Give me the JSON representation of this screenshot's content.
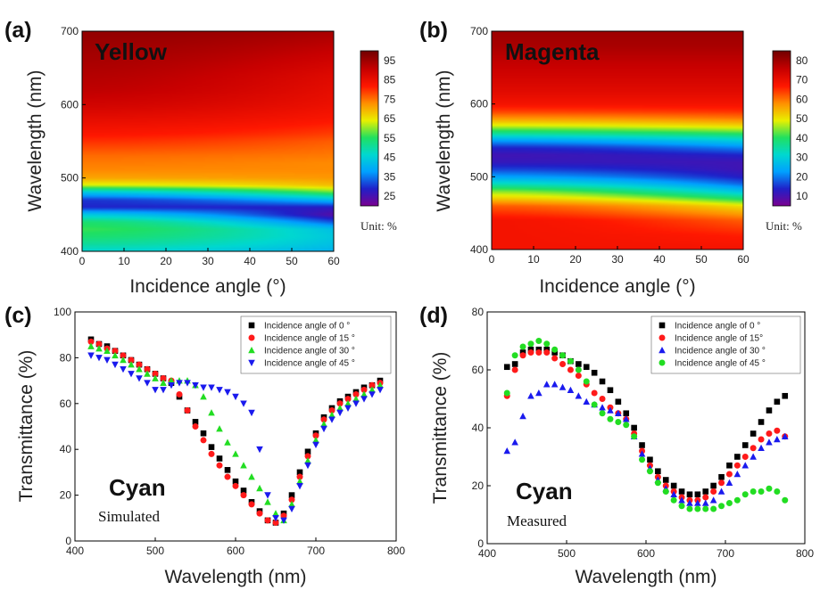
{
  "colors": {
    "jet": [
      "#7a0090",
      "#2020c8",
      "#00a0ff",
      "#00d8d0",
      "#20e060",
      "#e8f000",
      "#ff9000",
      "#ff1800",
      "#c80000",
      "#700000"
    ],
    "series": [
      "#000000",
      "#ff1a1a",
      "#22dd22",
      "#1a1aee"
    ]
  },
  "panels": {
    "a": {
      "label": "(a)",
      "title": "Yellow",
      "xlabel": "Incidence angle (°)",
      "ylabel": "Wavelength (nm)",
      "xticks": [
        "0",
        "10",
        "20",
        "30",
        "40",
        "50",
        "60"
      ],
      "yticks": [
        "400",
        "500",
        "600",
        "700"
      ],
      "colorbar_ticks": [
        "95",
        "85",
        "75",
        "65",
        "55",
        "45",
        "35",
        "25"
      ],
      "unit": "Unit: %"
    },
    "b": {
      "label": "(b)",
      "title": "Magenta",
      "xlabel": "Incidence angle (°)",
      "ylabel": "Wavelength (nm)",
      "xticks": [
        "0",
        "10",
        "20",
        "30",
        "40",
        "50",
        "60"
      ],
      "yticks": [
        "400",
        "500",
        "600",
        "700"
      ],
      "colorbar_ticks": [
        "80",
        "70",
        "60",
        "50",
        "40",
        "30",
        "20",
        "10"
      ],
      "unit": "Unit: %"
    },
    "c": {
      "label": "(c)",
      "big": "Cyan",
      "sub": "Simulated",
      "xlabel": "Wavelength (nm)",
      "ylabel": "Transmittance (%)",
      "xticks": [
        "400",
        "500",
        "600",
        "700",
        "800"
      ],
      "yticks": [
        "0",
        "20",
        "40",
        "60",
        "80",
        "100"
      ]
    },
    "d": {
      "label": "(d)",
      "big": "Cyan",
      "sub": "Measured",
      "xlabel": "Wavelength (nm)",
      "ylabel": "Transmittance (%)",
      "xticks": [
        "400",
        "500",
        "600",
        "700",
        "800"
      ],
      "yticks": [
        "0",
        "20",
        "40",
        "60",
        "80"
      ]
    }
  },
  "chart_data": [
    {
      "type": "heatmap",
      "title": "Yellow",
      "xlabel": "Incidence angle (°)",
      "ylabel": "Wavelength (nm)",
      "xlim": [
        0,
        60
      ],
      "ylim": [
        400,
        700
      ],
      "zlim": [
        25,
        95
      ],
      "zunit": "%",
      "angles": [
        0,
        60
      ],
      "profile_wavelengths": [
        400,
        410,
        420,
        430,
        440,
        450,
        460,
        470,
        480,
        490,
        500,
        510,
        520,
        530,
        540,
        550,
        560,
        580,
        600,
        620,
        640,
        660,
        680,
        700
      ],
      "profile_angle0": [
        48,
        52,
        55,
        57,
        55,
        46,
        33,
        34,
        45,
        63,
        70,
        72,
        73,
        74,
        76,
        78,
        80,
        83,
        86,
        88,
        89,
        90,
        91,
        92
      ],
      "profile_angle60": [
        43,
        45,
        46,
        45,
        36,
        28,
        32,
        44,
        58,
        68,
        71,
        72,
        72,
        73,
        74,
        75,
        77,
        80,
        82,
        83,
        84,
        86,
        88,
        90
      ]
    },
    {
      "type": "heatmap",
      "title": "Magenta",
      "xlabel": "Incidence angle (°)",
      "ylabel": "Wavelength (nm)",
      "xlim": [
        0,
        60
      ],
      "ylim": [
        400,
        700
      ],
      "zlim": [
        10,
        80
      ],
      "zunit": "%",
      "angles": [
        0,
        60
      ],
      "profile_wavelengths": [
        400,
        420,
        440,
        460,
        470,
        480,
        490,
        500,
        510,
        520,
        530,
        540,
        550,
        560,
        570,
        580,
        590,
        600,
        620,
        640,
        660,
        680,
        700
      ],
      "profile_angle0": [
        66,
        66,
        66,
        60,
        52,
        45,
        35,
        26,
        20,
        16,
        15,
        18,
        26,
        38,
        48,
        56,
        62,
        66,
        69,
        71,
        73,
        75,
        76
      ],
      "profile_angle60": [
        66,
        64,
        60,
        50,
        40,
        30,
        22,
        17,
        15,
        15,
        18,
        24,
        32,
        42,
        51,
        58,
        63,
        66,
        69,
        71,
        73,
        75,
        76
      ]
    },
    {
      "type": "scatter",
      "xlabel": "Wavelength (nm)",
      "ylabel": "Transmittance (%)",
      "xlim": [
        400,
        800
      ],
      "ylim": [
        0,
        100
      ],
      "series": [
        {
          "name": "Incidence angle of 0 °",
          "marker": "square",
          "x": [
            420,
            430,
            440,
            450,
            460,
            470,
            480,
            490,
            500,
            510,
            520,
            530,
            540,
            550,
            560,
            570,
            580,
            590,
            600,
            610,
            620,
            630,
            640,
            650,
            660,
            670,
            680,
            690,
            700,
            710,
            720,
            730,
            740,
            750,
            760,
            770,
            780
          ],
          "y": [
            88,
            86,
            85,
            83,
            81,
            79,
            77,
            75,
            73,
            71,
            69,
            63,
            57,
            52,
            47,
            41,
            36,
            31,
            26,
            22,
            17,
            13,
            9,
            8,
            12,
            20,
            30,
            39,
            47,
            54,
            58,
            61,
            63,
            65,
            67,
            68,
            70
          ]
        },
        {
          "name": "Incidence angle of 15 °",
          "marker": "circle",
          "x": [
            420,
            430,
            440,
            450,
            460,
            470,
            480,
            490,
            500,
            510,
            520,
            530,
            540,
            550,
            560,
            570,
            580,
            590,
            600,
            610,
            620,
            630,
            640,
            650,
            660,
            670,
            680,
            690,
            700,
            710,
            720,
            730,
            740,
            750,
            760,
            770,
            780
          ],
          "y": [
            87,
            86,
            84,
            83,
            81,
            79,
            77,
            75,
            73,
            71,
            70,
            64,
            57,
            50,
            44,
            38,
            33,
            28,
            24,
            20,
            16,
            12,
            9,
            8,
            11,
            18,
            28,
            37,
            46,
            53,
            57,
            60,
            62,
            64,
            66,
            68,
            69
          ]
        },
        {
          "name": "Incidence angle of 30 °",
          "marker": "triangle-up",
          "x": [
            420,
            430,
            440,
            450,
            460,
            470,
            480,
            490,
            500,
            510,
            520,
            530,
            540,
            550,
            560,
            570,
            580,
            590,
            600,
            610,
            620,
            630,
            640,
            650,
            660,
            670,
            680,
            690,
            700,
            710,
            720,
            730,
            740,
            750,
            760,
            770,
            780
          ],
          "y": [
            85,
            84,
            83,
            81,
            79,
            77,
            75,
            73,
            71,
            69,
            70,
            70,
            70,
            68,
            63,
            56,
            49,
            43,
            38,
            33,
            28,
            23,
            17,
            12,
            9,
            16,
            26,
            35,
            44,
            51,
            55,
            58,
            60,
            62,
            64,
            66,
            68
          ]
        },
        {
          "name": "Incidence angle of 45 °",
          "marker": "triangle-down",
          "x": [
            420,
            430,
            440,
            450,
            460,
            470,
            480,
            490,
            500,
            510,
            520,
            530,
            540,
            550,
            560,
            570,
            580,
            590,
            600,
            610,
            620,
            630,
            640,
            650,
            660,
            670,
            680,
            690,
            700,
            710,
            720,
            730,
            740,
            750,
            760,
            770,
            780
          ],
          "y": [
            81,
            80,
            79,
            77,
            75,
            73,
            71,
            69,
            66,
            66,
            68,
            69,
            69,
            68,
            67,
            67,
            66,
            65,
            63,
            60,
            56,
            40,
            20,
            10,
            9,
            14,
            24,
            33,
            42,
            49,
            53,
            56,
            58,
            60,
            62,
            64,
            66
          ]
        }
      ]
    },
    {
      "type": "scatter",
      "xlabel": "Wavelength (nm)",
      "ylabel": "Transmittance (%)",
      "xlim": [
        400,
        800
      ],
      "ylim": [
        0,
        80
      ],
      "series": [
        {
          "name": "Incidence angle of 0 °",
          "marker": "square",
          "x": [
            425,
            435,
            445,
            455,
            465,
            475,
            485,
            495,
            505,
            515,
            525,
            535,
            545,
            555,
            565,
            575,
            585,
            595,
            605,
            615,
            625,
            635,
            645,
            655,
            665,
            675,
            685,
            695,
            705,
            715,
            725,
            735,
            745,
            755,
            765,
            775
          ],
          "y": [
            61,
            62,
            66,
            67,
            67,
            67,
            66,
            65,
            63,
            62,
            61,
            59,
            56,
            53,
            49,
            45,
            40,
            34,
            29,
            25,
            22,
            20,
            18,
            17,
            17,
            18,
            20,
            23,
            27,
            30,
            34,
            38,
            42,
            46,
            49,
            51
          ]
        },
        {
          "name": "Incidence angle of 15°",
          "marker": "circle",
          "x": [
            425,
            435,
            445,
            455,
            465,
            475,
            485,
            495,
            505,
            515,
            525,
            535,
            545,
            555,
            565,
            575,
            585,
            595,
            605,
            615,
            625,
            635,
            645,
            655,
            665,
            675,
            685,
            695,
            705,
            715,
            725,
            735,
            745,
            755,
            765,
            775
          ],
          "y": [
            51,
            60,
            65,
            66,
            66,
            66,
            64,
            62,
            60,
            58,
            55,
            52,
            50,
            47,
            45,
            43,
            38,
            32,
            27,
            23,
            20,
            18,
            16,
            15,
            15,
            16,
            18,
            21,
            24,
            27,
            30,
            33,
            36,
            38,
            39,
            37
          ]
        },
        {
          "name": "Incidence angle of 30 °",
          "marker": "triangle-up",
          "x": [
            425,
            435,
            445,
            455,
            465,
            475,
            485,
            495,
            505,
            515,
            525,
            535,
            545,
            555,
            565,
            575,
            585,
            595,
            605,
            615,
            625,
            635,
            645,
            655,
            665,
            675,
            685,
            695,
            705,
            715,
            725,
            735,
            745,
            755,
            765,
            775
          ],
          "y": [
            32,
            35,
            44,
            51,
            52,
            55,
            55,
            54,
            53,
            51,
            49,
            48,
            47,
            46,
            45,
            43,
            37,
            31,
            26,
            22,
            19,
            17,
            15,
            14,
            14,
            14,
            15,
            18,
            21,
            24,
            27,
            30,
            33,
            35,
            36,
            37
          ]
        },
        {
          "name": "Incidence angle of 45 °",
          "marker": "circle",
          "x": [
            425,
            435,
            445,
            455,
            465,
            475,
            485,
            495,
            505,
            515,
            525,
            535,
            545,
            555,
            565,
            575,
            585,
            595,
            605,
            615,
            625,
            635,
            645,
            655,
            665,
            675,
            685,
            695,
            705,
            715,
            725,
            735,
            745,
            755,
            765,
            775
          ],
          "y": [
            52,
            65,
            68,
            69,
            70,
            69,
            67,
            65,
            63,
            60,
            56,
            48,
            45,
            43,
            42,
            41,
            37,
            29,
            25,
            21,
            18,
            15,
            13,
            12,
            12,
            12,
            12,
            13,
            14,
            15,
            17,
            18,
            18,
            19,
            18,
            15
          ]
        }
      ]
    }
  ]
}
